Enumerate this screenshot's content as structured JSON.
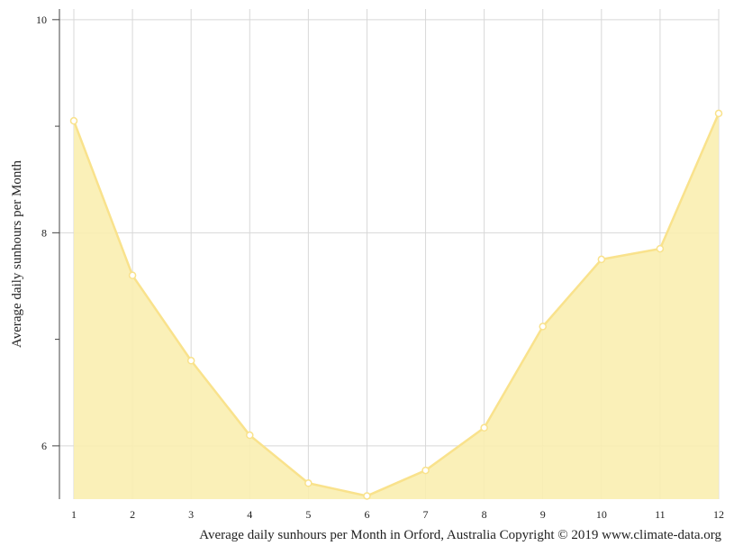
{
  "chart_data": {
    "type": "area",
    "title": "",
    "ylabel": "Average daily sunhours per Month",
    "caption": "Average daily sunhours per Month in Orford, Australia Copyright © 2019 www.climate-data.org",
    "x": [
      1,
      2,
      3,
      4,
      5,
      6,
      7,
      8,
      9,
      10,
      11,
      12
    ],
    "series": [
      {
        "values": [
          9.05,
          7.6,
          6.8,
          6.1,
          5.65,
          5.53,
          5.77,
          6.17,
          7.12,
          7.75,
          7.85,
          9.12
        ]
      }
    ],
    "xlim": [
      1,
      12
    ],
    "ylim": [
      5.5,
      10.1
    ],
    "y_ticks": [
      6,
      8,
      10
    ],
    "y_minor_ticks": [
      7,
      9
    ],
    "grid": true,
    "colors": {
      "line": "#f9e28c",
      "fill": "#f9eeb0",
      "marker_fill": "#ffffff",
      "grid": "#d8d8d8",
      "axis": "#444444"
    }
  }
}
